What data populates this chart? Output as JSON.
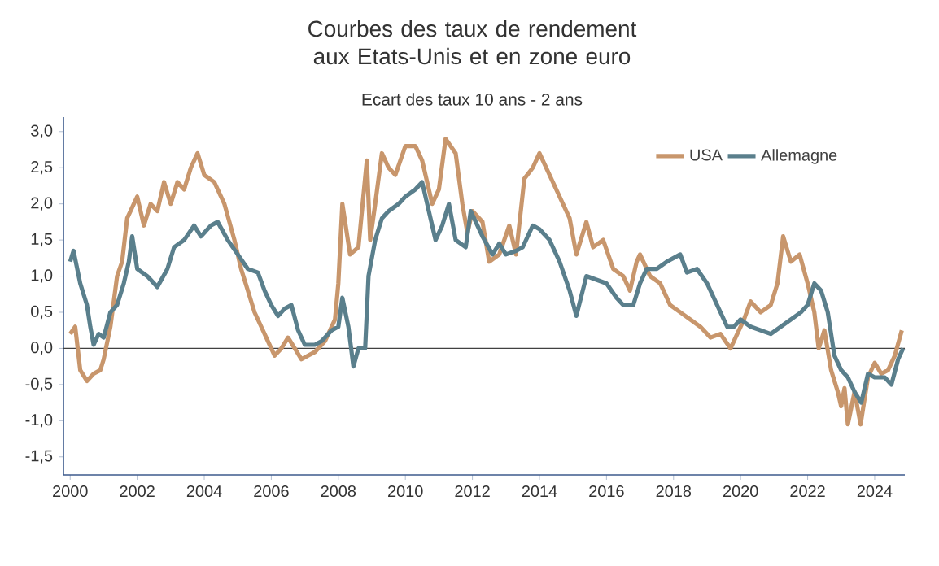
{
  "chart_data": {
    "type": "line",
    "title": "Courbes des taux de rendement aux Etats-Unis et en zone euro",
    "subtitle": "Ecart des taux 10 ans - 2 ans",
    "series": [
      {
        "name": "USA",
        "color": "#c8966c",
        "x": [
          2000.0,
          2000.15,
          2000.3,
          2000.5,
          2000.7,
          2000.9,
          2001.0,
          2001.2,
          2001.4,
          2001.55,
          2001.7,
          2001.9,
          2002.0,
          2002.2,
          2002.4,
          2002.6,
          2002.8,
          2003.0,
          2003.2,
          2003.4,
          2003.6,
          2003.8,
          2004.0,
          2004.3,
          2004.6,
          2004.9,
          2005.1,
          2005.3,
          2005.5,
          2005.7,
          2005.9,
          2006.1,
          2006.3,
          2006.5,
          2006.7,
          2006.9,
          2007.1,
          2007.3,
          2007.6,
          2007.9,
          2008.0,
          2008.12,
          2008.35,
          2008.6,
          2008.85,
          2008.95,
          2009.1,
          2009.3,
          2009.5,
          2009.7,
          2010.0,
          2010.3,
          2010.5,
          2010.8,
          2011.0,
          2011.2,
          2011.5,
          2011.7,
          2011.85,
          2012.0,
          2012.3,
          2012.5,
          2012.8,
          2013.1,
          2013.3,
          2013.55,
          2013.8,
          2014.0,
          2014.3,
          2014.6,
          2014.9,
          2015.1,
          2015.4,
          2015.6,
          2015.9,
          2016.2,
          2016.5,
          2016.7,
          2016.9,
          2017.0,
          2017.3,
          2017.6,
          2017.9,
          2018.2,
          2018.5,
          2018.8,
          2019.1,
          2019.4,
          2019.7,
          2019.9,
          2020.1,
          2020.3,
          2020.6,
          2020.9,
          2021.1,
          2021.27,
          2021.5,
          2021.76,
          2022.0,
          2022.2,
          2022.33,
          2022.5,
          2022.7,
          2022.9,
          2023.0,
          2023.1,
          2023.2,
          2023.4,
          2023.58,
          2023.8,
          2024.0,
          2024.2,
          2024.4,
          2024.6,
          2024.81
        ],
        "values": [
          0.2,
          0.3,
          -0.3,
          -0.45,
          -0.35,
          -0.3,
          -0.15,
          0.3,
          1.0,
          1.2,
          1.8,
          2.0,
          2.1,
          1.7,
          2.0,
          1.9,
          2.3,
          2.0,
          2.3,
          2.2,
          2.5,
          2.7,
          2.4,
          2.3,
          2.0,
          1.5,
          1.1,
          0.8,
          0.5,
          0.3,
          0.1,
          -0.1,
          0.0,
          0.15,
          0.0,
          -0.15,
          -0.1,
          -0.05,
          0.1,
          0.4,
          0.9,
          2.0,
          1.3,
          1.4,
          2.6,
          1.5,
          2.0,
          2.7,
          2.5,
          2.4,
          2.8,
          2.8,
          2.6,
          2.0,
          2.2,
          2.9,
          2.7,
          2.0,
          1.6,
          1.9,
          1.75,
          1.2,
          1.3,
          1.7,
          1.3,
          2.35,
          2.5,
          2.7,
          2.4,
          2.1,
          1.8,
          1.3,
          1.75,
          1.4,
          1.5,
          1.1,
          1.0,
          0.8,
          1.2,
          1.3,
          1.0,
          0.9,
          0.6,
          0.5,
          0.4,
          0.3,
          0.15,
          0.2,
          0.0,
          0.2,
          0.4,
          0.65,
          0.5,
          0.6,
          0.9,
          1.55,
          1.2,
          1.3,
          0.9,
          0.5,
          0.0,
          0.25,
          -0.3,
          -0.6,
          -0.8,
          -0.55,
          -1.05,
          -0.6,
          -1.05,
          -0.4,
          -0.2,
          -0.35,
          -0.3,
          -0.1,
          0.25
        ]
      },
      {
        "name": "Allemagne",
        "color": "#5a7f8c",
        "x": [
          2000.0,
          2000.1,
          2000.3,
          2000.5,
          2000.6,
          2000.7,
          2000.85,
          2001.0,
          2001.2,
          2001.4,
          2001.6,
          2001.75,
          2001.85,
          2002.0,
          2002.3,
          2002.6,
          2002.9,
          2003.1,
          2003.4,
          2003.7,
          2003.9,
          2004.2,
          2004.4,
          2004.7,
          2005.0,
          2005.3,
          2005.6,
          2005.8,
          2006.0,
          2006.2,
          2006.4,
          2006.6,
          2006.8,
          2007.0,
          2007.3,
          2007.5,
          2007.8,
          2008.0,
          2008.12,
          2008.3,
          2008.45,
          2008.6,
          2008.8,
          2008.9,
          2009.1,
          2009.3,
          2009.5,
          2009.8,
          2010.0,
          2010.3,
          2010.5,
          2010.7,
          2010.9,
          2011.1,
          2011.3,
          2011.5,
          2011.8,
          2011.95,
          2012.3,
          2012.6,
          2012.8,
          2013.0,
          2013.3,
          2013.5,
          2013.8,
          2014.0,
          2014.3,
          2014.6,
          2014.9,
          2015.1,
          2015.4,
          2015.7,
          2016.0,
          2016.3,
          2016.5,
          2016.8,
          2017.0,
          2017.2,
          2017.5,
          2017.8,
          2018.2,
          2018.4,
          2018.7,
          2019.0,
          2019.3,
          2019.6,
          2019.8,
          2020.0,
          2020.3,
          2020.6,
          2020.9,
          2021.2,
          2021.5,
          2021.8,
          2022.0,
          2022.2,
          2022.4,
          2022.6,
          2022.8,
          2023.0,
          2023.2,
          2023.4,
          2023.6,
          2023.8,
          2024.0,
          2024.3,
          2024.5,
          2024.7,
          2024.85
        ],
        "values": [
          1.2,
          1.35,
          0.9,
          0.6,
          0.3,
          0.05,
          0.2,
          0.15,
          0.5,
          0.6,
          0.9,
          1.2,
          1.55,
          1.1,
          1.0,
          0.85,
          1.1,
          1.4,
          1.5,
          1.7,
          1.55,
          1.7,
          1.75,
          1.5,
          1.3,
          1.1,
          1.05,
          0.8,
          0.6,
          0.45,
          0.55,
          0.6,
          0.25,
          0.05,
          0.05,
          0.1,
          0.25,
          0.3,
          0.7,
          0.3,
          -0.25,
          0.0,
          0.0,
          1.0,
          1.5,
          1.8,
          1.9,
          2.0,
          2.1,
          2.2,
          2.3,
          1.9,
          1.5,
          1.7,
          2.0,
          1.5,
          1.4,
          1.9,
          1.55,
          1.3,
          1.45,
          1.3,
          1.35,
          1.4,
          1.7,
          1.65,
          1.5,
          1.2,
          0.8,
          0.45,
          1.0,
          0.95,
          0.9,
          0.7,
          0.6,
          0.6,
          0.9,
          1.1,
          1.1,
          1.2,
          1.3,
          1.05,
          1.1,
          0.9,
          0.6,
          0.3,
          0.3,
          0.4,
          0.3,
          0.25,
          0.2,
          0.3,
          0.4,
          0.5,
          0.6,
          0.9,
          0.8,
          0.5,
          -0.1,
          -0.3,
          -0.4,
          -0.6,
          -0.75,
          -0.35,
          -0.4,
          -0.4,
          -0.5,
          -0.15,
          0.0
        ]
      }
    ],
    "xlim": [
      1999.8,
      2024.9
    ],
    "xticks": [
      2000,
      2002,
      2004,
      2006,
      2008,
      2010,
      2012,
      2014,
      2016,
      2018,
      2020,
      2022,
      2024
    ],
    "ylim": [
      -1.75,
      3.2
    ],
    "yticks": [
      {
        "value": -1.5,
        "label": "-1,5"
      },
      {
        "value": -1.0,
        "label": "-1,0"
      },
      {
        "value": -0.5,
        "label": "-0,5"
      },
      {
        "value": 0.0,
        "label": "0,0"
      },
      {
        "value": 0.5,
        "label": "0,5"
      },
      {
        "value": 1.0,
        "label": "1,0"
      },
      {
        "value": 1.5,
        "label": "1,5"
      },
      {
        "value": 2.0,
        "label": "2,0"
      },
      {
        "value": 2.5,
        "label": "2,5"
      },
      {
        "value": 3.0,
        "label": "3,0"
      }
    ],
    "ref_lines": [
      {
        "axis": "y",
        "value": 0,
        "color": "#404040"
      }
    ],
    "legend": "top right",
    "grid": false,
    "marker": "none",
    "line_style": "solid"
  }
}
